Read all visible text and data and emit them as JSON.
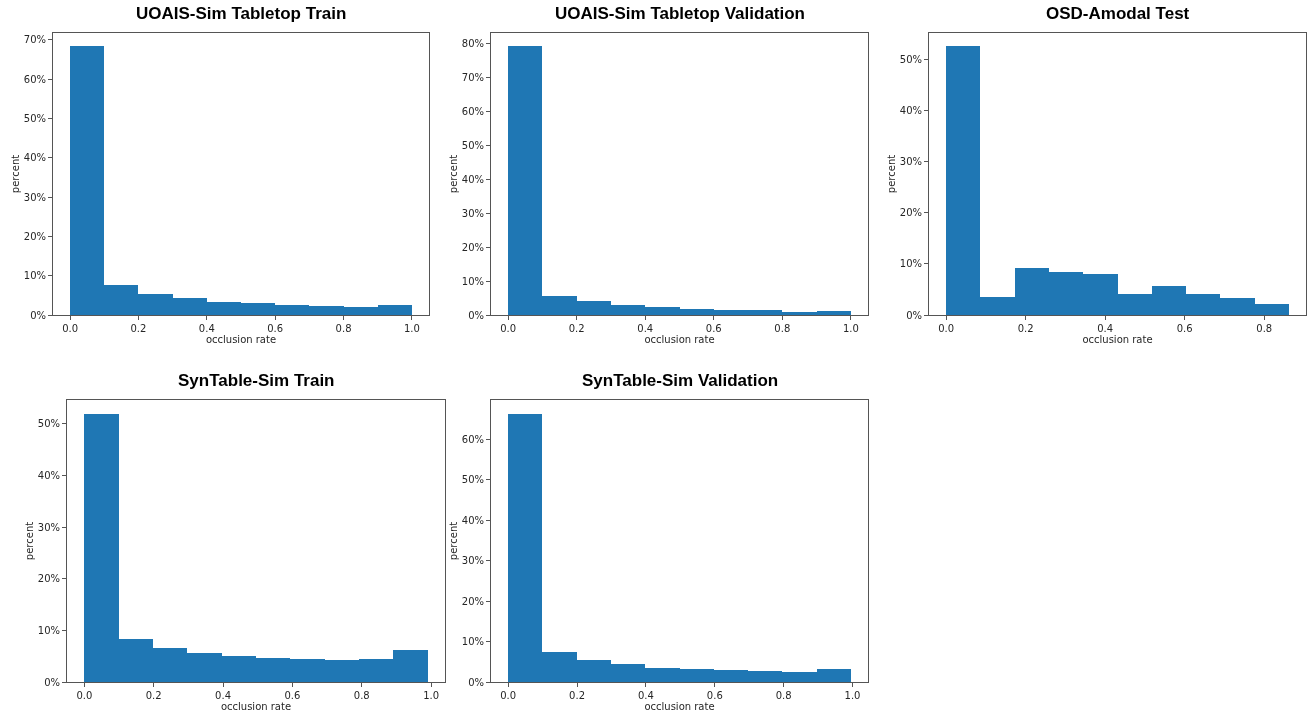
{
  "chart_data": [
    {
      "type": "histogram",
      "title": "UOAIS-Sim Tabletop Train",
      "xlabel": "occlusion rate",
      "ylabel": "percent",
      "color": "#1f77b4",
      "bins": [
        0,
        0.1,
        0.2,
        0.3,
        0.4,
        0.5,
        0.6,
        0.7,
        0.8,
        0.9,
        1.0
      ],
      "values": [
        68.4,
        7.6,
        5.3,
        4.4,
        3.4,
        3.0,
        2.5,
        2.2,
        2.0,
        2.5
      ],
      "xlim": [
        -0.05,
        1.05
      ],
      "ylim": [
        0,
        71.7
      ],
      "xticks": [
        {
          "value": 0,
          "label": "0.0"
        },
        {
          "value": 0.2,
          "label": "0.2"
        },
        {
          "value": 0.4,
          "label": "0.4"
        },
        {
          "value": 0.6,
          "label": "0.6"
        },
        {
          "value": 0.8,
          "label": "0.8"
        },
        {
          "value": 1,
          "label": "1.0"
        }
      ],
      "yticks": [
        {
          "value": 0,
          "label": "0%"
        },
        {
          "value": 10,
          "label": "10%"
        },
        {
          "value": 20,
          "label": "20%"
        },
        {
          "value": 30,
          "label": "30%"
        },
        {
          "value": 40,
          "label": "40%"
        },
        {
          "value": 50,
          "label": "50%"
        },
        {
          "value": 60,
          "label": "60%"
        },
        {
          "value": 70,
          "label": "70%"
        }
      ]
    },
    {
      "type": "histogram",
      "title": "UOAIS-Sim Tabletop Validation",
      "xlabel": "occlusion rate",
      "ylabel": "percent",
      "color": "#1f77b4",
      "bins": [
        0,
        0.1,
        0.2,
        0.3,
        0.4,
        0.5,
        0.6,
        0.7,
        0.8,
        0.9,
        1.0
      ],
      "values": [
        79.4,
        5.7,
        4.1,
        3.0,
        2.4,
        1.9,
        1.6,
        1.4,
        0.9,
        1.2
      ],
      "xlim": [
        -0.05,
        1.05
      ],
      "ylim": [
        0,
        83.2
      ],
      "xticks": [
        {
          "value": 0,
          "label": "0.0"
        },
        {
          "value": 0.2,
          "label": "0.2"
        },
        {
          "value": 0.4,
          "label": "0.4"
        },
        {
          "value": 0.6,
          "label": "0.6"
        },
        {
          "value": 0.8,
          "label": "0.8"
        },
        {
          "value": 1,
          "label": "1.0"
        }
      ],
      "yticks": [
        {
          "value": 0,
          "label": "0%"
        },
        {
          "value": 10,
          "label": "10%"
        },
        {
          "value": 20,
          "label": "20%"
        },
        {
          "value": 30,
          "label": "30%"
        },
        {
          "value": 40,
          "label": "40%"
        },
        {
          "value": 50,
          "label": "50%"
        },
        {
          "value": 60,
          "label": "60%"
        },
        {
          "value": 70,
          "label": "70%"
        },
        {
          "value": 80,
          "label": "80%"
        }
      ]
    },
    {
      "type": "histogram",
      "title": "OSD-Amodal Test",
      "xlabel": "occlusion rate",
      "ylabel": "percent",
      "color": "#1f77b4",
      "bins": [
        0,
        0.0862,
        0.1724,
        0.2586,
        0.3448,
        0.431,
        0.5172,
        0.6034,
        0.6896,
        0.7758,
        0.862
      ],
      "values": [
        52.7,
        3.5,
        9.2,
        8.4,
        8.0,
        4.1,
        5.6,
        4.1,
        3.4,
        2.2
      ],
      "xlim": [
        -0.043,
        0.905
      ],
      "ylim": [
        0,
        55.2
      ],
      "xticks": [
        {
          "value": 0,
          "label": "0.0"
        },
        {
          "value": 0.2,
          "label": "0.2"
        },
        {
          "value": 0.4,
          "label": "0.4"
        },
        {
          "value": 0.6,
          "label": "0.6"
        },
        {
          "value": 0.8,
          "label": "0.8"
        }
      ],
      "yticks": [
        {
          "value": 0,
          "label": "0%"
        },
        {
          "value": 10,
          "label": "10%"
        },
        {
          "value": 20,
          "label": "20%"
        },
        {
          "value": 30,
          "label": "30%"
        },
        {
          "value": 40,
          "label": "40%"
        },
        {
          "value": 50,
          "label": "50%"
        }
      ]
    },
    {
      "type": "histogram",
      "title": "SynTable-Sim Train",
      "xlabel": "occlusion rate",
      "ylabel": "percent",
      "color": "#1f77b4",
      "bins": [
        0,
        0.099,
        0.198,
        0.297,
        0.396,
        0.495,
        0.594,
        0.693,
        0.792,
        0.891,
        0.99
      ],
      "values": [
        51.9,
        8.3,
        6.5,
        5.7,
        5.0,
        4.7,
        4.4,
        4.2,
        4.5,
        6.1
      ],
      "xlim": [
        -0.05,
        1.04
      ],
      "ylim": [
        0,
        54.6
      ],
      "xticks": [
        {
          "value": 0,
          "label": "0.0"
        },
        {
          "value": 0.2,
          "label": "0.2"
        },
        {
          "value": 0.4,
          "label": "0.4"
        },
        {
          "value": 0.6,
          "label": "0.6"
        },
        {
          "value": 0.8,
          "label": "0.8"
        },
        {
          "value": 1,
          "label": "1.0"
        }
      ],
      "yticks": [
        {
          "value": 0,
          "label": "0%"
        },
        {
          "value": 10,
          "label": "10%"
        },
        {
          "value": 20,
          "label": "20%"
        },
        {
          "value": 30,
          "label": "30%"
        },
        {
          "value": 40,
          "label": "40%"
        },
        {
          "value": 50,
          "label": "50%"
        }
      ]
    },
    {
      "type": "histogram",
      "title": "SynTable-Sim Validation",
      "xlabel": "occlusion rate",
      "ylabel": "percent",
      "color": "#1f77b4",
      "bins": [
        0,
        0.0995,
        0.199,
        0.2985,
        0.398,
        0.4975,
        0.597,
        0.6965,
        0.796,
        0.8955,
        0.995
      ],
      "values": [
        66.3,
        7.4,
        5.4,
        4.5,
        3.5,
        3.1,
        3.0,
        2.7,
        2.5,
        3.1
      ],
      "xlim": [
        -0.05,
        1.045
      ],
      "ylim": [
        0,
        69.7
      ],
      "xticks": [
        {
          "value": 0,
          "label": "0.0"
        },
        {
          "value": 0.2,
          "label": "0.2"
        },
        {
          "value": 0.4,
          "label": "0.4"
        },
        {
          "value": 0.6,
          "label": "0.6"
        },
        {
          "value": 0.8,
          "label": "0.8"
        },
        {
          "value": 1,
          "label": "1.0"
        }
      ],
      "yticks": [
        {
          "value": 0,
          "label": "0%"
        },
        {
          "value": 10,
          "label": "10%"
        },
        {
          "value": 20,
          "label": "20%"
        },
        {
          "value": 30,
          "label": "30%"
        },
        {
          "value": 40,
          "label": "40%"
        },
        {
          "value": 50,
          "label": "50%"
        },
        {
          "value": 60,
          "label": "60%"
        }
      ]
    }
  ]
}
